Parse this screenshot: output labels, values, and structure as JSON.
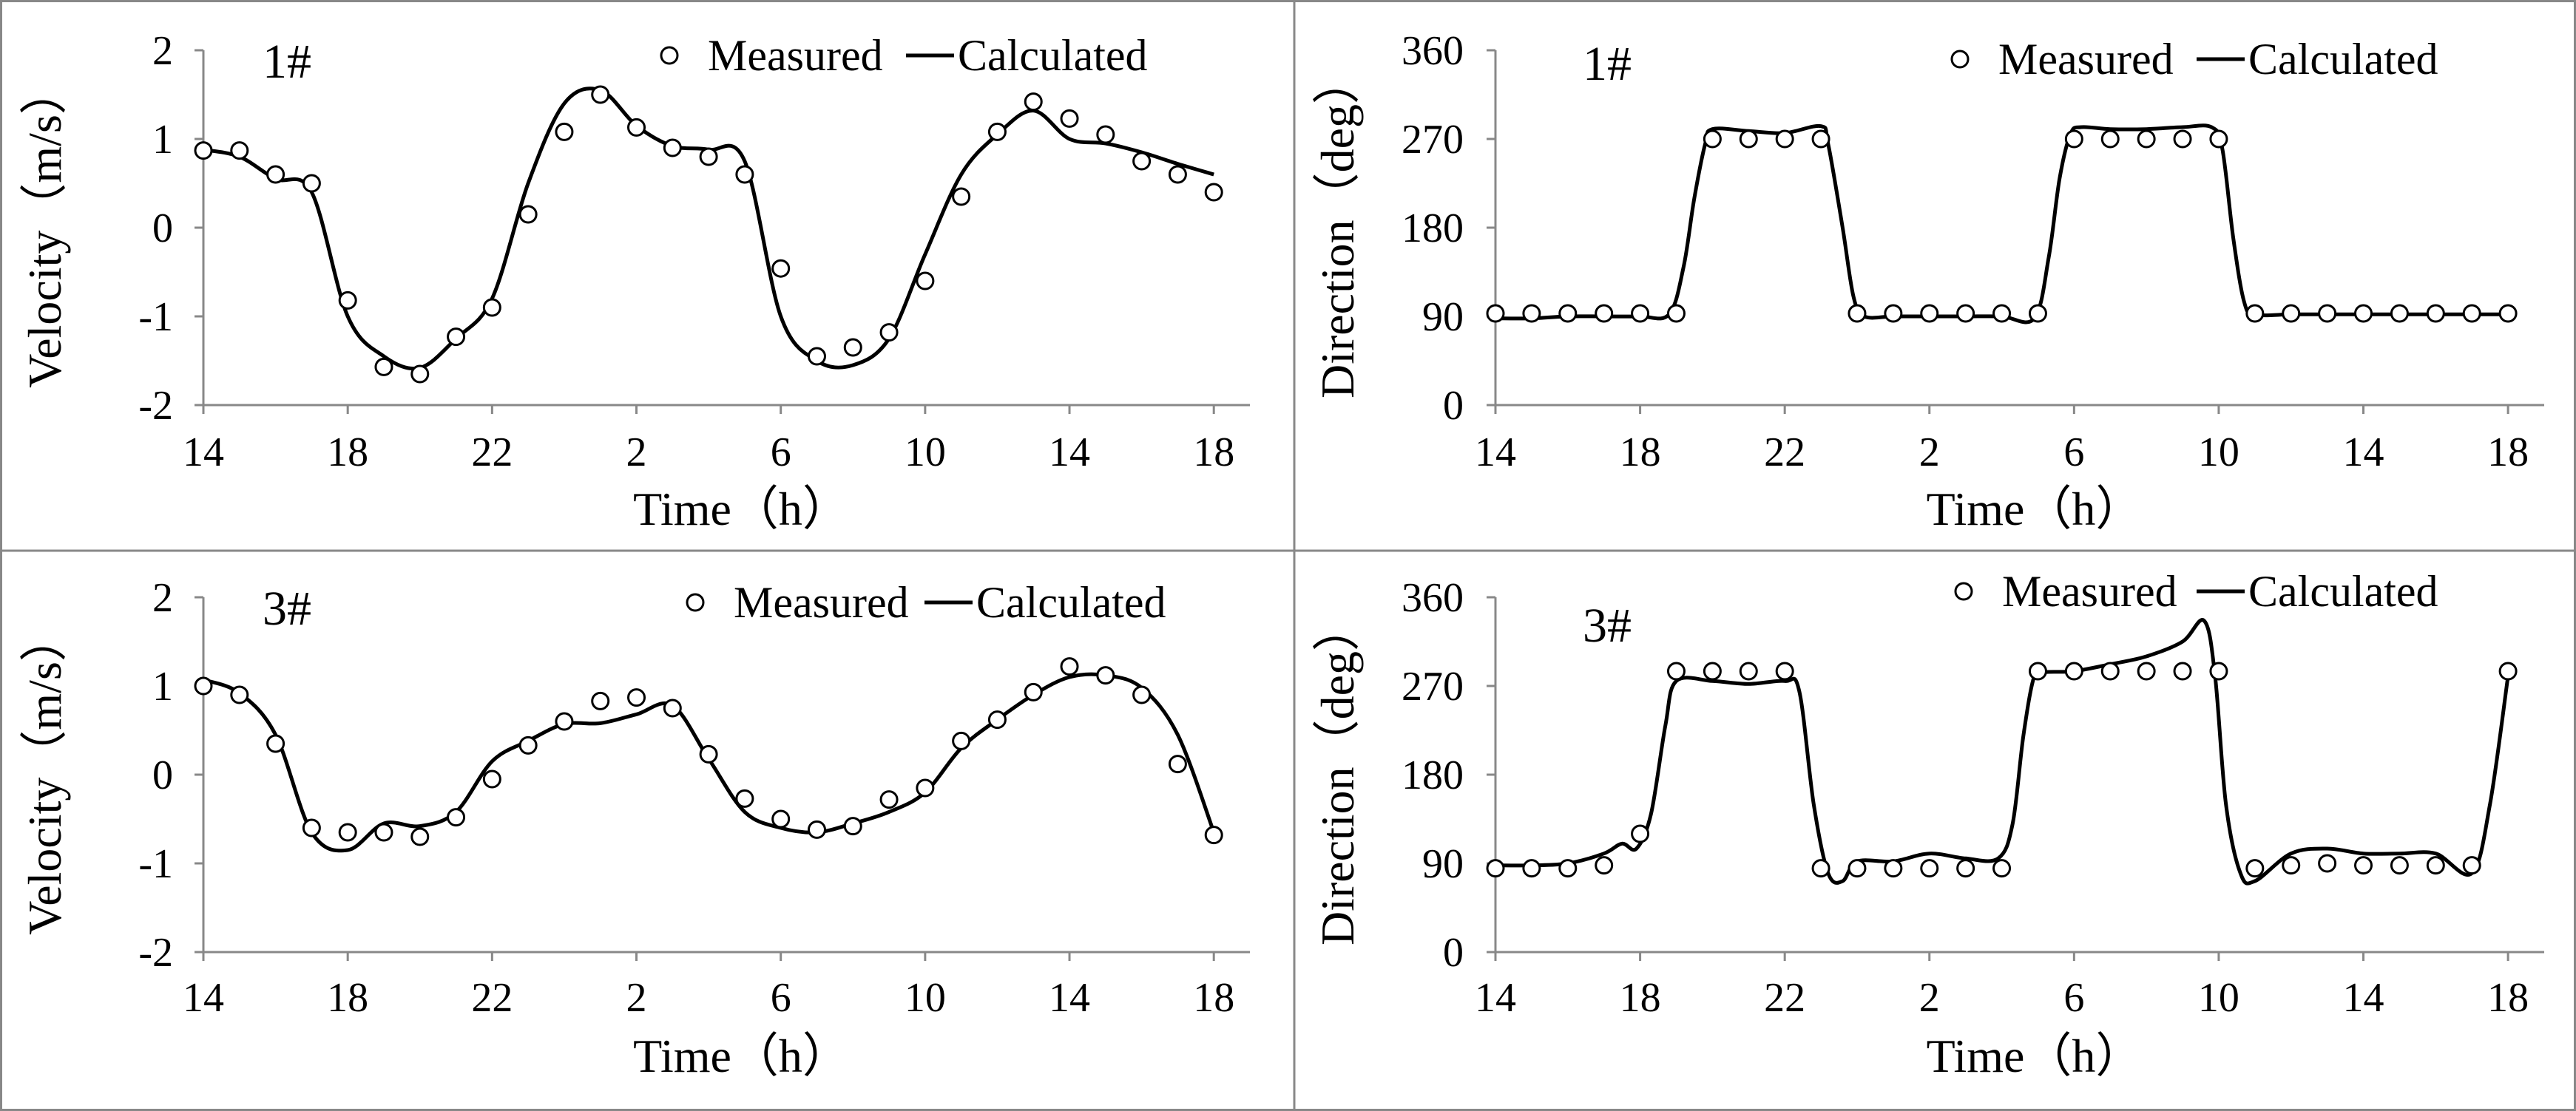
{
  "figure": {
    "panels": [
      {
        "id": "p1",
        "tag": "1#",
        "kind": "velocity"
      },
      {
        "id": "p2",
        "tag": "1#",
        "kind": "direction"
      },
      {
        "id": "p3",
        "tag": "3#",
        "kind": "velocity"
      },
      {
        "id": "p4",
        "tag": "3#",
        "kind": "direction"
      }
    ],
    "legend": {
      "measured": "Measured",
      "calculated": "Calculated"
    },
    "xlabel": "Time（h）",
    "ylabel_velocity": "Velocity（m/s）",
    "ylabel_direction": "Direction（deg）"
  },
  "chart_data": [
    {
      "type": "line",
      "title": "1#",
      "xlabel": "Time（h）",
      "ylabel": "Velocity（m/s）",
      "xlim": [
        14,
        43
      ],
      "ylim": [
        -2,
        2
      ],
      "xticks": [
        14,
        18,
        22,
        26,
        30,
        34,
        38,
        42
      ],
      "xtick_labels": [
        "14",
        "18",
        "22",
        "2",
        "6",
        "10",
        "14",
        "18"
      ],
      "yticks": [
        -2,
        -1,
        0,
        1,
        2
      ],
      "ytick_labels": [
        "-2",
        "-1",
        "0",
        "1",
        "2"
      ],
      "series": [
        {
          "name": "Measured",
          "marker": "circle",
          "x": [
            14,
            15,
            16,
            17,
            18,
            19,
            20,
            21,
            22,
            23,
            24,
            25,
            26,
            27,
            28,
            29,
            30,
            31,
            32,
            33,
            34,
            35,
            36,
            37,
            38,
            39,
            40,
            41,
            42
          ],
          "y": [
            0.87,
            0.87,
            0.6,
            0.5,
            -0.82,
            -1.57,
            -1.65,
            -1.23,
            -0.9,
            0.15,
            1.08,
            1.5,
            1.13,
            0.9,
            0.8,
            0.6,
            -0.46,
            -1.45,
            -1.35,
            -1.18,
            -0.6,
            0.35,
            1.08,
            1.42,
            1.23,
            1.05,
            0.75,
            0.6,
            0.4
          ]
        },
        {
          "name": "Calculated",
          "marker": "none",
          "x": [
            14,
            15,
            16,
            17,
            18,
            19,
            20,
            21,
            22,
            23,
            24,
            25,
            26,
            27,
            28,
            29,
            30,
            31,
            32,
            33,
            34,
            35,
            36,
            37,
            38,
            39,
            40,
            41,
            42
          ],
          "y": [
            0.88,
            0.8,
            0.55,
            0.4,
            -1.0,
            -1.45,
            -1.58,
            -1.25,
            -0.8,
            0.5,
            1.4,
            1.55,
            1.15,
            0.92,
            0.88,
            0.75,
            -1.0,
            -1.5,
            -1.55,
            -1.25,
            -0.3,
            0.6,
            1.05,
            1.32,
            1.0,
            0.95,
            0.85,
            0.72,
            0.6
          ]
        }
      ]
    },
    {
      "type": "line",
      "title": "1#",
      "xlabel": "Time（h）",
      "ylabel": "Direction（deg）",
      "xlim": [
        14,
        43
      ],
      "ylim": [
        0,
        360
      ],
      "xticks": [
        14,
        18,
        22,
        26,
        30,
        34,
        38,
        42
      ],
      "xtick_labels": [
        "14",
        "18",
        "22",
        "2",
        "6",
        "10",
        "14",
        "18"
      ],
      "yticks": [
        0,
        90,
        180,
        270,
        360
      ],
      "ytick_labels": [
        "0",
        "90",
        "180",
        "270",
        "360"
      ],
      "series": [
        {
          "name": "Measured",
          "marker": "circle",
          "x": [
            14,
            15,
            16,
            17,
            18,
            19,
            20,
            21,
            22,
            23,
            24,
            25,
            26,
            27,
            28,
            29,
            30,
            31,
            32,
            33,
            34,
            35,
            36,
            37,
            38,
            39,
            40,
            41,
            42
          ],
          "y": [
            93,
            93,
            93,
            93,
            93,
            93,
            270,
            270,
            270,
            270,
            93,
            93,
            93,
            93,
            93,
            93,
            270,
            270,
            270,
            270,
            270,
            93,
            93,
            93,
            93,
            93,
            93,
            93,
            93
          ]
        },
        {
          "name": "Calculated",
          "marker": "none",
          "x": [
            14,
            15,
            16,
            17,
            18,
            18.8,
            19.2,
            19.5,
            19.8,
            20,
            21,
            22,
            23,
            23.2,
            23.6,
            23.9,
            24.2,
            25,
            26,
            27,
            28,
            28.9,
            29.3,
            29.6,
            29.9,
            30.2,
            31,
            32,
            33,
            33.8,
            34.1,
            34.4,
            34.7,
            35,
            36,
            37,
            38,
            39,
            40,
            41,
            42
          ],
          "y": [
            88,
            88,
            90,
            90,
            90,
            92,
            140,
            210,
            265,
            280,
            278,
            276,
            283,
            265,
            180,
            110,
            90,
            90,
            90,
            90,
            90,
            88,
            150,
            230,
            275,
            282,
            280,
            280,
            282,
            282,
            260,
            170,
            105,
            92,
            92,
            92,
            92,
            92,
            92,
            92,
            92
          ]
        }
      ]
    },
    {
      "type": "line",
      "title": "3#",
      "xlabel": "Time（h）",
      "ylabel": "Velocity（m/s）",
      "xlim": [
        14,
        43
      ],
      "ylim": [
        -2,
        2
      ],
      "xticks": [
        14,
        18,
        22,
        26,
        30,
        34,
        38,
        42
      ],
      "xtick_labels": [
        "14",
        "18",
        "22",
        "2",
        "6",
        "10",
        "14",
        "18"
      ],
      "yticks": [
        -2,
        -1,
        0,
        1,
        2
      ],
      "ytick_labels": [
        "-2",
        "-1",
        "0",
        "1",
        "2"
      ],
      "series": [
        {
          "name": "Measured",
          "marker": "circle",
          "x": [
            14,
            15,
            16,
            17,
            18,
            19,
            20,
            21,
            22,
            23,
            24,
            25,
            26,
            27,
            28,
            29,
            30,
            31,
            32,
            33,
            34,
            35,
            36,
            37,
            38,
            39,
            40,
            41,
            42
          ],
          "y": [
            1.0,
            0.9,
            0.35,
            -0.6,
            -0.65,
            -0.65,
            -0.7,
            -0.48,
            -0.05,
            0.33,
            0.6,
            0.83,
            0.87,
            0.75,
            0.23,
            -0.27,
            -0.5,
            -0.62,
            -0.58,
            -0.28,
            -0.15,
            0.38,
            0.62,
            0.93,
            1.22,
            1.12,
            0.9,
            0.12,
            -0.68
          ]
        },
        {
          "name": "Calculated",
          "marker": "none",
          "x": [
            14,
            15,
            16,
            17,
            18,
            19,
            20,
            21,
            22,
            23,
            24,
            25,
            26,
            27,
            28,
            29,
            30,
            31,
            32,
            33,
            34,
            35,
            36,
            37,
            38,
            39,
            40,
            41,
            42
          ],
          "y": [
            1.07,
            0.92,
            0.45,
            -0.65,
            -0.85,
            -0.55,
            -0.58,
            -0.42,
            0.15,
            0.38,
            0.57,
            0.58,
            0.68,
            0.78,
            0.18,
            -0.42,
            -0.6,
            -0.65,
            -0.55,
            -0.42,
            -0.2,
            0.3,
            0.62,
            0.9,
            1.1,
            1.12,
            0.98,
            0.45,
            -0.65
          ]
        }
      ]
    },
    {
      "type": "line",
      "title": "3#",
      "xlabel": "Time（h）",
      "ylabel": "Direction（deg）",
      "xlim": [
        14,
        43
      ],
      "ylim": [
        0,
        360
      ],
      "xticks": [
        14,
        18,
        22,
        26,
        30,
        34,
        38,
        42
      ],
      "xtick_labels": [
        "14",
        "18",
        "22",
        "2",
        "6",
        "10",
        "14",
        "18"
      ],
      "yticks": [
        0,
        90,
        180,
        270,
        360
      ],
      "ytick_labels": [
        "0",
        "90",
        "180",
        "270",
        "360"
      ],
      "series": [
        {
          "name": "Measured",
          "marker": "circle",
          "x": [
            14,
            15,
            16,
            17,
            18,
            19,
            20,
            21,
            22,
            23,
            24,
            25,
            26,
            27,
            28,
            29,
            30,
            31,
            32,
            33,
            34,
            35,
            36,
            37,
            38,
            39,
            40,
            41,
            42
          ],
          "y": [
            85,
            85,
            85,
            88,
            120,
            285,
            285,
            285,
            285,
            85,
            85,
            85,
            85,
            85,
            85,
            285,
            285,
            285,
            285,
            285,
            285,
            85,
            88,
            90,
            88,
            88,
            88,
            88,
            285
          ]
        },
        {
          "name": "Calculated",
          "marker": "none",
          "x": [
            14,
            15,
            16,
            17,
            17.5,
            17.9,
            18.3,
            18.7,
            19,
            20,
            21,
            22,
            22.4,
            22.8,
            23.2,
            23.6,
            24,
            25,
            26,
            27,
            27.9,
            28.3,
            28.6,
            28.9,
            29.2,
            30,
            31,
            32,
            33,
            33.6,
            33.9,
            34.2,
            34.6,
            35,
            36,
            37,
            38,
            39,
            40,
            41,
            41.5,
            42
          ],
          "y": [
            88,
            88,
            90,
            100,
            110,
            105,
            140,
            230,
            275,
            275,
            272,
            275,
            265,
            150,
            80,
            72,
            92,
            92,
            100,
            95,
            95,
            130,
            220,
            280,
            284,
            285,
            292,
            300,
            315,
            336,
            280,
            150,
            80,
            72,
            100,
            105,
            100,
            100,
            100,
            80,
            150,
            280
          ]
        }
      ]
    }
  ]
}
